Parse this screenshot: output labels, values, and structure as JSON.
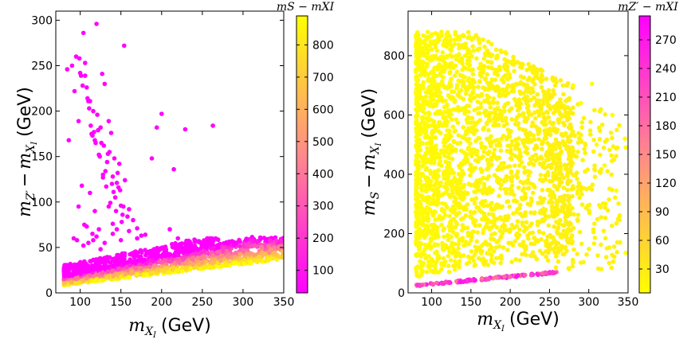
{
  "chart_data": [
    {
      "type": "scatter",
      "name": "left-panel",
      "title": "",
      "xlabel_math": "m",
      "xlabel_sub": "X",
      "xlabel_subsub": "I",
      "xlabel_units": "(GeV)",
      "ylabel_math": "m",
      "ylabel_sub1": "Z′",
      "ylabel_minus": "−",
      "ylabel_math2": "m",
      "ylabel_sub2": "X",
      "ylabel_subsub2": "I",
      "ylabel_units": "(GeV)",
      "xlim": [
        70,
        350
      ],
      "ylim": [
        0,
        310
      ],
      "xticks": [
        "100",
        "150",
        "200",
        "250",
        "300",
        "350"
      ],
      "xtick_values": [
        100,
        150,
        200,
        250,
        300,
        350
      ],
      "yticks": [
        "0",
        "50",
        "100",
        "150",
        "200",
        "250",
        "300"
      ],
      "ytick_values": [
        0,
        50,
        100,
        150,
        200,
        250,
        300
      ],
      "colorbar": {
        "title": "m_S − m_{X_I}",
        "title_text": "mS − mXI",
        "range": [
          30,
          890
        ],
        "ticks": [
          "100",
          "200",
          "300",
          "400",
          "500",
          "600",
          "700",
          "800"
        ],
        "tick_values": [
          100,
          200,
          300,
          400,
          500,
          600,
          700,
          800
        ],
        "low_color": "#ff00ff",
        "high_color": "#ffff00"
      },
      "points": [
        [
          84,
          246
        ],
        [
          86,
          168
        ],
        [
          90,
          250
        ],
        [
          93,
          222
        ],
        [
          95,
          260
        ],
        [
          98,
          189
        ],
        [
          99,
          258
        ],
        [
          100,
          242
        ],
        [
          101,
          239
        ],
        [
          103,
          228
        ],
        [
          104,
          286
        ],
        [
          106,
          253
        ],
        [
          106,
          239
        ],
        [
          108,
          226
        ],
        [
          109,
          214
        ],
        [
          110,
          211
        ],
        [
          111,
          203
        ],
        [
          112,
          211
        ],
        [
          113,
          184
        ],
        [
          114,
          175
        ],
        [
          115,
          173
        ],
        [
          116,
          200
        ],
        [
          117,
          177
        ],
        [
          118,
          168
        ],
        [
          119,
          165
        ],
        [
          120,
          296
        ],
        [
          121,
          196
        ],
        [
          122,
          179
        ],
        [
          123,
          152
        ],
        [
          124,
          150
        ],
        [
          125,
          182
        ],
        [
          126,
          165
        ],
        [
          127,
          241
        ],
        [
          128,
          127
        ],
        [
          129,
          162
        ],
        [
          130,
          230
        ],
        [
          131,
          134
        ],
        [
          132,
          117
        ],
        [
          133,
          144
        ],
        [
          134,
          153
        ],
        [
          135,
          189
        ],
        [
          136,
          155
        ],
        [
          137,
          99
        ],
        [
          138,
          176
        ],
        [
          139,
          120
        ],
        [
          140,
          128
        ],
        [
          141,
          111
        ],
        [
          142,
          148
        ],
        [
          143,
          105
        ],
        [
          144,
          90
        ],
        [
          145,
          121
        ],
        [
          146,
          132
        ],
        [
          147,
          116
        ],
        [
          148,
          142
        ],
        [
          149,
          113
        ],
        [
          150,
          96
        ],
        [
          151,
          78
        ],
        [
          152,
          86
        ],
        [
          153,
          95
        ],
        [
          154,
          272
        ],
        [
          155,
          124
        ],
        [
          158,
          84
        ],
        [
          160,
          92
        ],
        [
          165,
          80
        ],
        [
          170,
          71
        ],
        [
          175,
          63
        ],
        [
          180,
          64
        ],
        [
          188,
          148
        ],
        [
          194,
          182
        ],
        [
          200,
          197
        ],
        [
          215,
          136
        ],
        [
          229,
          180
        ],
        [
          263,
          184
        ],
        [
          108,
          73
        ],
        [
          112,
          110
        ],
        [
          118,
          90
        ],
        [
          123,
          70
        ],
        [
          128,
          130
        ],
        [
          135,
          95
        ],
        [
          140,
          76
        ],
        [
          98,
          95
        ],
        [
          102,
          118
        ],
        [
          92,
          60
        ],
        [
          96,
          58
        ],
        [
          104,
          52
        ],
        [
          110,
          55
        ],
        [
          116,
          58
        ],
        [
          120,
          62
        ],
        [
          125,
          48
        ],
        [
          130,
          55
        ],
        [
          140,
          65
        ],
        [
          150,
          58
        ],
        [
          145,
          70
        ],
        [
          160,
          68
        ],
        [
          105,
          75
        ],
        [
          115,
          65
        ],
        [
          170,
          60
        ],
        [
          210,
          70
        ],
        [
          220,
          60
        ]
      ]
    },
    {
      "type": "scatter",
      "name": "right-panel",
      "title": "",
      "xlabel_math": "m",
      "xlabel_sub": "X",
      "xlabel_subsub": "I",
      "xlabel_units": "(GeV)",
      "ylabel_math": "m",
      "ylabel_sub1": "S",
      "ylabel_minus": "−",
      "ylabel_math2": "m",
      "ylabel_sub2": "X",
      "ylabel_subsub2": "I",
      "ylabel_units": "(GeV)",
      "xlim": [
        70,
        350
      ],
      "ylim": [
        0,
        950
      ],
      "xticks": [
        "100",
        "150",
        "200",
        "250",
        "300",
        "350"
      ],
      "xtick_values": [
        100,
        150,
        200,
        250,
        300,
        350
      ],
      "yticks": [
        "0",
        "200",
        "400",
        "600",
        "800"
      ],
      "ytick_values": [
        0,
        200,
        400,
        600,
        800
      ],
      "colorbar": {
        "title": "m_{Z′} − m_{X_I}",
        "title_text": "mZ′ − mXI",
        "range": [
          5,
          295
        ],
        "ticks": [
          "30",
          "60",
          "90",
          "120",
          "150",
          "180",
          "210",
          "240",
          "270"
        ],
        "tick_values": [
          30,
          60,
          90,
          120,
          150,
          180,
          210,
          240,
          270
        ],
        "low_color": "#ffff00",
        "high_color": "#ff00ff"
      },
      "points": [
        [
          304,
          705
        ],
        [
          330,
          600
        ],
        [
          335,
          345
        ],
        [
          346,
          520
        ],
        [
          347,
          490
        ],
        [
          347,
          135
        ],
        [
          290,
          640
        ],
        [
          310,
          500
        ],
        [
          320,
          430
        ],
        [
          280,
          700
        ]
      ]
    }
  ]
}
